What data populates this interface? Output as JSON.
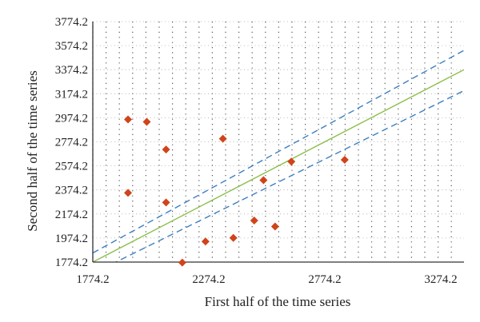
{
  "colors": {
    "points": "#d0441a",
    "trend_line": "#8cbf4a",
    "band_lines": "#3c7fc1",
    "grid_dots": "#555555",
    "axis": "#333333"
  },
  "chart_data": {
    "type": "scatter",
    "xlabel": "First half of the time series",
    "ylabel": "Second half of the time series",
    "xlim": [
      1774.2,
      3374.2
    ],
    "ylim": [
      1774.2,
      3774.2
    ],
    "x_ticks": [
      "1774.2",
      "2274.2",
      "2774.2",
      "3274.2"
    ],
    "y_ticks": [
      "1774.2",
      "1974.2",
      "2174.2",
      "2374.2",
      "2574.2",
      "2774.2",
      "2974.2",
      "3174.2",
      "3374.2",
      "3574.2",
      "3774.2"
    ],
    "grid": "dotted",
    "points": [
      {
        "x": 1926,
        "y": 2960
      },
      {
        "x": 2007,
        "y": 2940
      },
      {
        "x": 2090,
        "y": 2710
      },
      {
        "x": 2090,
        "y": 2270
      },
      {
        "x": 1926,
        "y": 2350
      },
      {
        "x": 2160,
        "y": 1770
      },
      {
        "x": 2260,
        "y": 1945
      },
      {
        "x": 2335,
        "y": 2800
      },
      {
        "x": 2380,
        "y": 1975
      },
      {
        "x": 2470,
        "y": 2120
      },
      {
        "x": 2510,
        "y": 2455
      },
      {
        "x": 2560,
        "y": 2070
      },
      {
        "x": 2630,
        "y": 2610
      },
      {
        "x": 2860,
        "y": 2625
      }
    ],
    "lines": [
      {
        "style": "solid",
        "from": [
          1774.2,
          1774.2
        ],
        "to": [
          3374.2,
          3374.2
        ]
      },
      {
        "style": "dashed",
        "from": [
          1774.2,
          1850
        ],
        "to": [
          3374.2,
          3535
        ]
      },
      {
        "style": "dashed",
        "from": [
          1774.2,
          1680
        ],
        "to": [
          3374.2,
          3200
        ]
      }
    ]
  }
}
